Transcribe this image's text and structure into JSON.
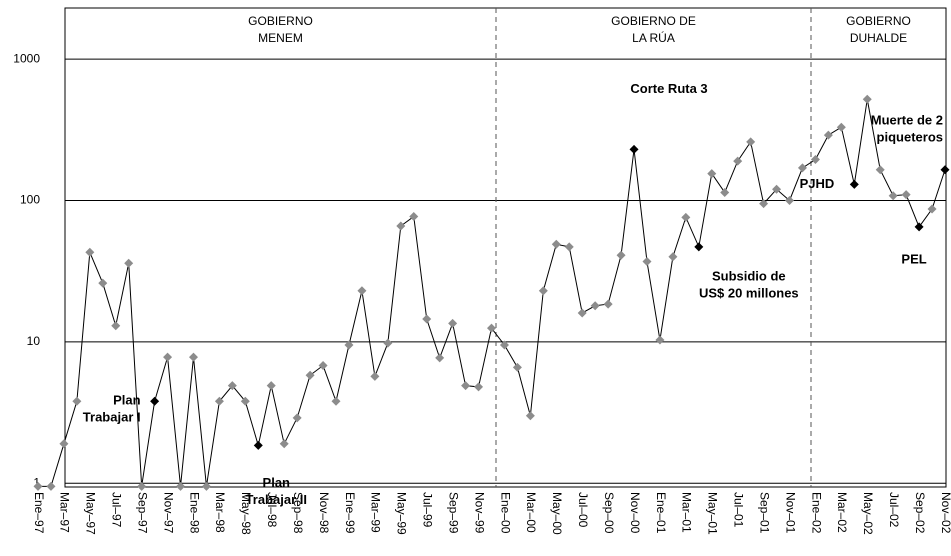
{
  "chart_data": {
    "type": "line",
    "log_scale": true,
    "grid": true,
    "categories": [
      "Ene–97",
      null,
      "Mar–97",
      null,
      "May–97",
      null,
      "Jul–97",
      null,
      "Sep–97",
      null,
      "Nov–97",
      null,
      "Ene–98",
      null,
      "Mar–98",
      null,
      "May–98",
      null,
      "Jul–98",
      null,
      "Sep–98",
      null,
      "Nov–98",
      null,
      "Ene–99",
      null,
      "Mar–99",
      null,
      "May–99",
      null,
      "Jul–99",
      null,
      "Sep–99",
      null,
      "Nov–99",
      null,
      "Ene–00",
      null,
      "Mar–00",
      null,
      "May–00",
      null,
      "Jul–00",
      null,
      "Sep–00",
      null,
      "Nov–00",
      null,
      "Ene–01",
      null,
      "Mar–01",
      null,
      "May–01",
      null,
      "Jul–01",
      null,
      "Sep–01",
      null,
      "Nov–01",
      null,
      "Ene–02",
      null,
      "Mar–02",
      null,
      "May–02",
      null,
      "Jul–02",
      null,
      "Sep–02",
      null,
      "Nov–02"
    ],
    "series": [
      {
        "color": "#000000",
        "marker_color": "#8c8c8c",
        "values": [
          0.95,
          0.95,
          1.9,
          3.8,
          43,
          26,
          13,
          36,
          0.95,
          3.8,
          7.8,
          0.95,
          7.8,
          0.95,
          3.8,
          4.9,
          3.8,
          1.85,
          4.9,
          1.9,
          2.9,
          5.8,
          6.8,
          3.8,
          9.5,
          23,
          5.7,
          9.8,
          66,
          77,
          14.5,
          7.7,
          13.5,
          4.9,
          4.8,
          12.5,
          9.5,
          6.6,
          3,
          23,
          49,
          47,
          16,
          18,
          18.5,
          41,
          230,
          37,
          10.3,
          40,
          76,
          47,
          155,
          114,
          190,
          260,
          95,
          120,
          100,
          170,
          195,
          290,
          330,
          130,
          520,
          165,
          108,
          110,
          65,
          87,
          165
        ]
      }
    ],
    "ylim": [
      0.94,
      2300
    ],
    "yticks": [
      1,
      10,
      100,
      1000
    ],
    "periods": [
      [
        "GOBIERNO",
        "MENEM"
      ],
      [
        "GOBIERNO DE",
        "LA RÚA"
      ],
      [
        "GOBIERNO",
        "DUHALDE"
      ]
    ],
    "annotations": [
      {
        "point": 9,
        "lines": [
          "Plan",
          "Trabajar I"
        ],
        "marker_color": "#000000"
      },
      {
        "point": 17,
        "lines": [
          "Plan",
          "Trabajar II"
        ],
        "marker_color": "#000000"
      },
      {
        "point": 46,
        "lines": [
          "Corte Ruta 3"
        ],
        "marker_color": "#000000"
      },
      {
        "point": 51,
        "lines": [
          "Subsidio de",
          "US$ 20 millones"
        ],
        "marker_color": "#000000"
      },
      {
        "point": 63,
        "lines": [
          "PJHD"
        ],
        "marker_color": "#000000"
      },
      {
        "point": 68,
        "lines": [
          "PEL"
        ],
        "marker_color": "#000000"
      },
      {
        "point": 70,
        "lines": [
          "Muerte de 2",
          "piqueteros"
        ],
        "marker_color": "#000000"
      }
    ]
  }
}
